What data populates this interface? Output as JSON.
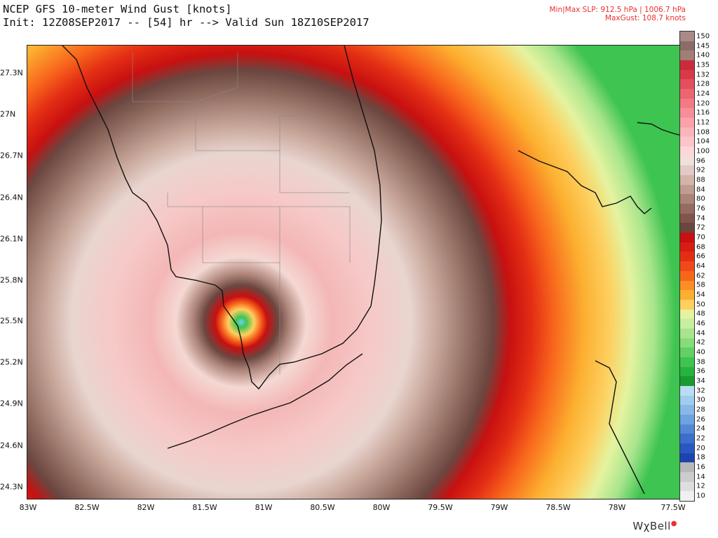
{
  "header": {
    "title": "NCEP GFS 10-meter Wind Gust [knots]",
    "init": "Init: 12Z08SEP2017 -- [54] hr --> Valid Sun 18Z10SEP2017",
    "slp": "Min|Max SLP: 912.5 hPa | 1006.7 hPa",
    "max_gust": "MaxGust: 108.7 knots"
  },
  "map": {
    "lat_labels": [
      "27.3N",
      "27N",
      "26.7N",
      "26.4N",
      "26.1N",
      "25.8N",
      "25.5N",
      "25.2N",
      "24.9N",
      "24.6N",
      "24.3N"
    ],
    "lon_labels": [
      "83W",
      "82.5W",
      "82W",
      "81.5W",
      "81W",
      "80.5W",
      "80W",
      "79.5W",
      "79W",
      "78.5W",
      "78W",
      "77.5W"
    ],
    "storm_center": {
      "lat": 25.5,
      "lon": -81.2
    }
  },
  "colorbar": {
    "levels": [
      "150",
      "145",
      "140",
      "135",
      "132",
      "128",
      "124",
      "120",
      "116",
      "112",
      "108",
      "104",
      "100",
      "96",
      "92",
      "88",
      "84",
      "80",
      "76",
      "74",
      "72",
      "70",
      "68",
      "66",
      "64",
      "62",
      "58",
      "54",
      "50",
      "48",
      "46",
      "44",
      "42",
      "40",
      "38",
      "36",
      "34",
      "32",
      "30",
      "28",
      "26",
      "24",
      "22",
      "20",
      "18",
      "16",
      "14",
      "12",
      "10"
    ],
    "colors": [
      "#a98a86",
      "#8b6c68",
      "#a07f77",
      "#c92d3b",
      "#d93a48",
      "#e34f5c",
      "#ec6570",
      "#f27a85",
      "#f68e98",
      "#f8a2aa",
      "#fab5bb",
      "#fbc5c9",
      "#fcd6d8",
      "#f0e0dc",
      "#e2cbc4",
      "#d2b4aa",
      "#bf9b90",
      "#ac8378",
      "#966b61",
      "#80554c",
      "#6b4640",
      "#c81010",
      "#d81c12",
      "#e42e14",
      "#f04a18",
      "#f8661c",
      "#fb8f24",
      "#fcb030",
      "#fdd060",
      "#e4f3a0",
      "#c8eea0",
      "#a8e58c",
      "#86dc78",
      "#62d064",
      "#3ec450",
      "#26b43e",
      "#189c30",
      "#b8ddf4",
      "#a0ccee",
      "#88b8e8",
      "#6ea2e0",
      "#5288d6",
      "#3a70cc",
      "#2a58c0",
      "#1c44b0",
      "#b8b8b8",
      "#cccccc",
      "#dedede",
      "#f0f0f0"
    ]
  },
  "branding": {
    "logo": "WχBell"
  }
}
